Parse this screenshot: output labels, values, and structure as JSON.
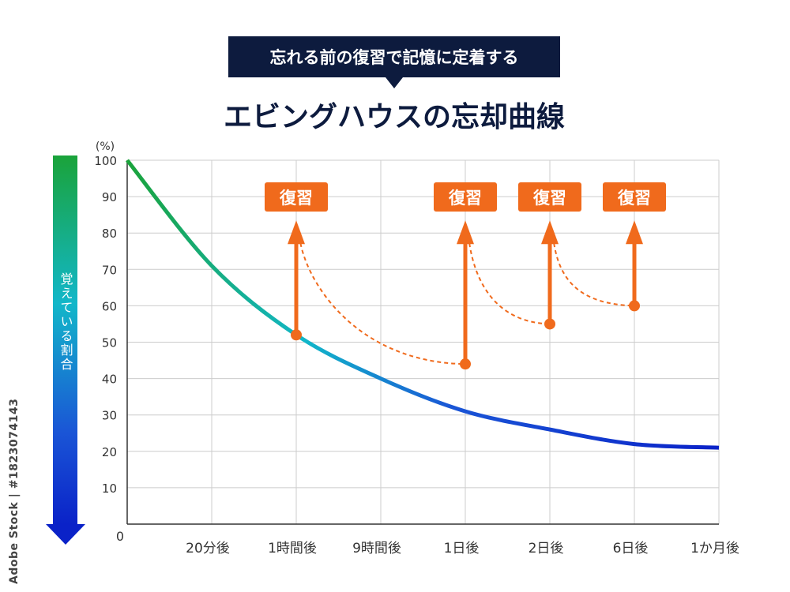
{
  "banner": {
    "text": "忘れる前の復習で記憶に定着する"
  },
  "watermark": "Adobe Stock | #1823074143",
  "chart_data": {
    "type": "line",
    "title": "エビングハウスの忘却曲線",
    "ylabel": "覚えている割合",
    "yunit": "(%)",
    "ylim": [
      0,
      100
    ],
    "yticks": [
      10,
      20,
      30,
      40,
      50,
      60,
      70,
      80,
      90,
      100
    ],
    "origin_label": "0",
    "categories": [
      "20分後",
      "1時間後",
      "9時間後",
      "1日後",
      "2日後",
      "6日後",
      "1か月後"
    ],
    "grid": true,
    "series": [
      {
        "values": [
          {
            "x": 0,
            "y": 100
          },
          {
            "x": 1,
            "y": 71
          },
          {
            "x": 2,
            "y": 52
          },
          {
            "x": 3,
            "y": 40
          },
          {
            "x": 4,
            "y": 31
          },
          {
            "x": 5,
            "y": 26
          },
          {
            "x": 6,
            "y": 22
          },
          {
            "x": 7,
            "y": 21
          }
        ]
      }
    ],
    "reviews": [
      {
        "label": "復習",
        "x": 2,
        "from": 52,
        "to": 80,
        "next": {
          "x": 4,
          "y": 44
        }
      },
      {
        "label": "復習",
        "x": 4,
        "from": 44,
        "to": 80,
        "next": {
          "x": 5,
          "y": 55
        }
      },
      {
        "label": "復習",
        "x": 5,
        "from": 55,
        "to": 80,
        "next": {
          "x": 6,
          "y": 60
        }
      },
      {
        "label": "復習",
        "x": 6,
        "from": 60,
        "to": 80,
        "next": null
      }
    ],
    "colors": {
      "curve_start": "#1aa33a",
      "curve_mid": "#12b7c9",
      "curve_end": "#0a22c8",
      "review": "#f06a1c",
      "banner_bg": "#0d1b3e",
      "title": "#0d1b3e",
      "grid": "#cccccc"
    }
  }
}
